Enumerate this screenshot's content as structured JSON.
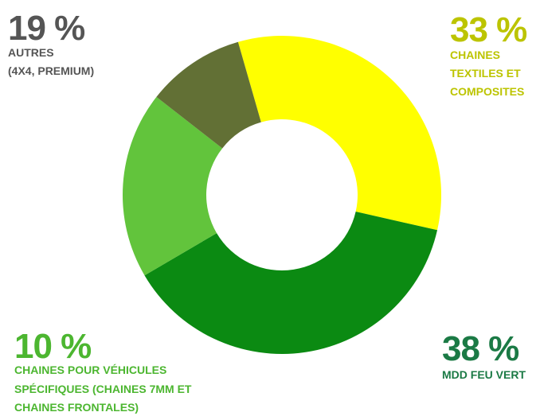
{
  "chart_data": {
    "type": "donut",
    "slices": [
      {
        "value": 33,
        "value_label": "33 %",
        "color": "#ffff00",
        "label_color": "#bcc400",
        "lines": [
          "CHAINES",
          "TEXTILES ET",
          "COMPOSITES"
        ]
      },
      {
        "value": 38,
        "value_label": "38 %",
        "color": "#0b8a12",
        "label_color": "#1b7a45",
        "lines": [
          "MDD FEU VERT"
        ]
      },
      {
        "value": 19,
        "value_label": "19 %",
        "color": "#62c43c",
        "label_color": "#555555",
        "lines": [
          "AUTRES",
          "(4X4, PREMIUM)"
        ]
      },
      {
        "value": 10,
        "value_label": "10 %",
        "color": "#627035",
        "label_color": "#4cb630",
        "lines": [
          "CHAINES POUR VÉHICULES",
          "SPÉCIFIQUES (CHAINES 7MM ET",
          "CHAINES FRONTALES)"
        ]
      }
    ]
  }
}
